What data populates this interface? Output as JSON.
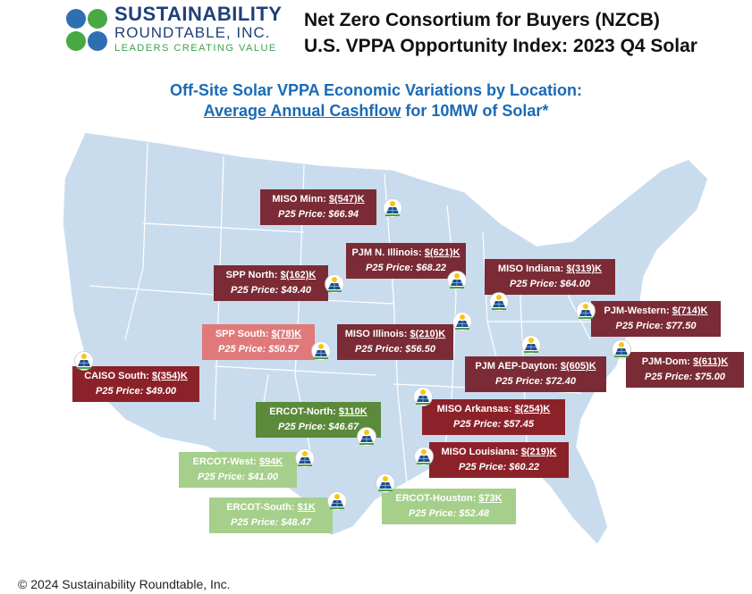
{
  "logo": {
    "line1": "SUSTAINABILITY",
    "line2": "ROUNDTABLE, INC.",
    "line3": "LEADERS CREATING VALUE"
  },
  "title": {
    "line1": "Net Zero Consortium for Buyers (NZCB)",
    "line2": "U.S. VPPA Opportunity Index: 2023 Q4 Solar"
  },
  "subtitle": {
    "line1": "Off-Site Solar VPPA Economic Variations by Location:",
    "line2_underlined": "Average Annual Cashflow",
    "line2_rest": " for 10MW of Solar*"
  },
  "price_prefix": "P25 Price: ",
  "regions": [
    {
      "name": "MISO Minn: ",
      "value": "$(547)K",
      "price": "$66.94"
    },
    {
      "name": "PJM N. Illinois: ",
      "value": "$(621)K",
      "price": "$68.22"
    },
    {
      "name": "SPP North: ",
      "value": "$(162)K",
      "price": "$49.40"
    },
    {
      "name": "MISO Indiana: ",
      "value": "$(319)K",
      "price": "$64.00"
    },
    {
      "name": "PJM-Western: ",
      "value": "$(714)K",
      "price": "$77.50"
    },
    {
      "name": "SPP South: ",
      "value": "$(78)K",
      "price": "$50.57"
    },
    {
      "name": "MISO Illinois: ",
      "value": "$(210)K",
      "price": "$56.50"
    },
    {
      "name": "CAISO South: ",
      "value": "$(354)K",
      "price": "$49.00"
    },
    {
      "name": "PJM AEP-Dayton: ",
      "value": "$(605)K",
      "price": "$72.40"
    },
    {
      "name": "PJM-Dom: ",
      "value": "$(611)K",
      "price": "$75.00"
    },
    {
      "name": "ERCOT-North: ",
      "value": "$110K",
      "price": "$46.67"
    },
    {
      "name": "MISO Arkansas: ",
      "value": "$(254)K",
      "price": "$57.45"
    },
    {
      "name": "ERCOT-West: ",
      "value": "$94K",
      "price": " $41.00"
    },
    {
      "name": "MISO Louisiana: ",
      "value": "$(219)K",
      "price": "$60.22"
    },
    {
      "name": "ERCOT-South: ",
      "value": "$1K",
      "price": "$48.47"
    },
    {
      "name": "ERCOT-Houston: ",
      "value": "$73K",
      "price": "$52.48"
    }
  ],
  "colors": {
    "map_fill": "#c9dcee",
    "map_border": "#ffffff",
    "negative_dark": "#7b2b35",
    "negative": "#8c2229",
    "negative_light": "#e07a7a",
    "positive": "#5b8a3a",
    "positive_light": "#a5cf8a"
  },
  "icon": "solar-panel-icon",
  "copyright": "© 2024 Sustainability Roundtable, Inc."
}
